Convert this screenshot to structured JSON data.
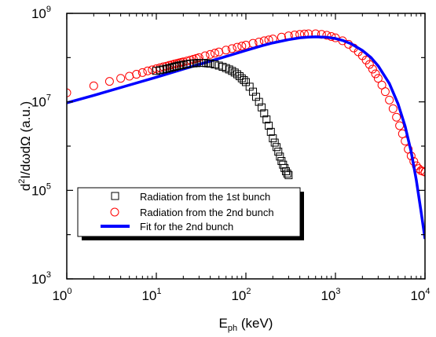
{
  "chart_data": {
    "type": "scatter",
    "title": "",
    "xlabel": {
      "base": "E",
      "sub": "ph",
      "rest": " (keV)"
    },
    "ylabel": {
      "d": "d",
      "sup": "2",
      "rest": "I/dωdΩ (a.u.)"
    },
    "x_scale": "log",
    "y_scale": "log",
    "xlim": [
      1,
      10000
    ],
    "ylim": [
      1000,
      1000000000
    ],
    "x_ticks": [
      {
        "value": 1,
        "base": "10",
        "exp": "0"
      },
      {
        "value": 10,
        "base": "10",
        "exp": "1"
      },
      {
        "value": 100,
        "base": "10",
        "exp": "2"
      },
      {
        "value": 1000,
        "base": "10",
        "exp": "3"
      },
      {
        "value": 10000,
        "base": "10",
        "exp": "4"
      }
    ],
    "y_ticks": [
      {
        "value": 1000,
        "base": "10",
        "exp": "3"
      },
      {
        "value": 100000,
        "base": "10",
        "exp": "5"
      },
      {
        "value": 10000000,
        "base": "10",
        "exp": "7"
      },
      {
        "value": 1000000000,
        "base": "10",
        "exp": "9"
      }
    ],
    "grid": false,
    "legend_position": "lower-left",
    "series": [
      {
        "name": "Radiation from the 1st bunch",
        "marker": "square",
        "color": "#000000",
        "x": [
          10,
          11,
          12,
          13,
          14,
          15,
          16,
          17,
          18,
          19,
          20,
          22,
          24,
          26,
          28,
          30,
          32,
          34,
          36,
          38,
          40,
          45,
          50,
          55,
          60,
          65,
          70,
          75,
          80,
          85,
          90,
          95,
          100,
          110,
          120,
          130,
          140,
          150,
          160,
          170,
          180,
          190,
          200,
          210,
          220,
          230,
          240,
          250,
          260,
          270,
          280,
          290,
          300
        ],
        "y": [
          50000000,
          52000000,
          54000000,
          56000000,
          58000000,
          60000000,
          62000000,
          64000000,
          66000000,
          67000000,
          69000000,
          71000000,
          73000000,
          74000000,
          75000000,
          76000000,
          76000000,
          76000000,
          75000000,
          74000000,
          73000000,
          70000000,
          66000000,
          62000000,
          58000000,
          54000000,
          50000000,
          46000000,
          42000000,
          38000000,
          34000000,
          31000000,
          28000000,
          22000000,
          17000000,
          13000000,
          10000000,
          7500000,
          5500000,
          4000000,
          2900000,
          2100000,
          1500000,
          1200000,
          950000,
          750000,
          580000,
          460000,
          380000,
          320000,
          270000,
          240000,
          220000
        ]
      },
      {
        "name": "Radiation from the 2nd bunch",
        "marker": "circle",
        "color": "#ff0000",
        "x": [
          1,
          2,
          3,
          4,
          5,
          6,
          7,
          8,
          9,
          10,
          11,
          12,
          13,
          14,
          15,
          16,
          17,
          18,
          19,
          20,
          22,
          24,
          26,
          28,
          30,
          35,
          40,
          45,
          50,
          60,
          70,
          80,
          90,
          100,
          120,
          140,
          160,
          180,
          200,
          250,
          300,
          350,
          400,
          450,
          500,
          600,
          700,
          800,
          900,
          1000,
          1200,
          1400,
          1600,
          1800,
          2000,
          2200,
          2400,
          2600,
          2800,
          3000,
          3300,
          3600,
          4000,
          4400,
          4800,
          5200,
          5600,
          6000,
          6500,
          7000,
          7500,
          8000,
          8500,
          9000,
          9500,
          10000
        ],
        "y": [
          16000000,
          23000000,
          29000000,
          34000000,
          38000000,
          42000000,
          46000000,
          50000000,
          53000000,
          56000000,
          59000000,
          62000000,
          64000000,
          67000000,
          69000000,
          72000000,
          74000000,
          76000000,
          78000000,
          80000000,
          84000000,
          88000000,
          92000000,
          96000000,
          100000000,
          110000000,
          118000000,
          126000000,
          134000000,
          148000000,
          160000000,
          172000000,
          182000000,
          192000000,
          210000000,
          225000000,
          240000000,
          252000000,
          264000000,
          290000000,
          310000000,
          325000000,
          335000000,
          342000000,
          346000000,
          345000000,
          335000000,
          320000000,
          300000000,
          280000000,
          240000000,
          200000000,
          165000000,
          135000000,
          110000000,
          88000000,
          70000000,
          55000000,
          43000000,
          34000000,
          24000000,
          17000000,
          11000000,
          7000000,
          4500000,
          2900000,
          1900000,
          1300000,
          850000,
          600000,
          450000,
          360000,
          310000,
          280000,
          270000,
          260000
        ]
      },
      {
        "name": "Fit for the 2nd bunch",
        "marker": "line",
        "color": "#0000ff",
        "x": [
          1,
          2,
          5,
          10,
          20,
          50,
          100,
          150,
          200,
          300,
          400,
          500,
          600,
          800,
          1000,
          1200,
          1500,
          2000,
          2500,
          3000,
          4000,
          5000,
          6000,
          7000,
          8000,
          9000,
          10000
        ],
        "y": [
          9500000,
          14000000,
          24000000,
          36000000,
          55000000,
          95000000,
          145000000,
          185000000,
          215000000,
          255000000,
          280000000,
          290000000,
          295000000,
          288000000,
          270000000,
          245000000,
          205000000,
          145000000,
          100000000,
          65000000,
          26000000,
          9000000,
          2800000,
          750000,
          170000,
          35000,
          8000
        ]
      }
    ]
  }
}
